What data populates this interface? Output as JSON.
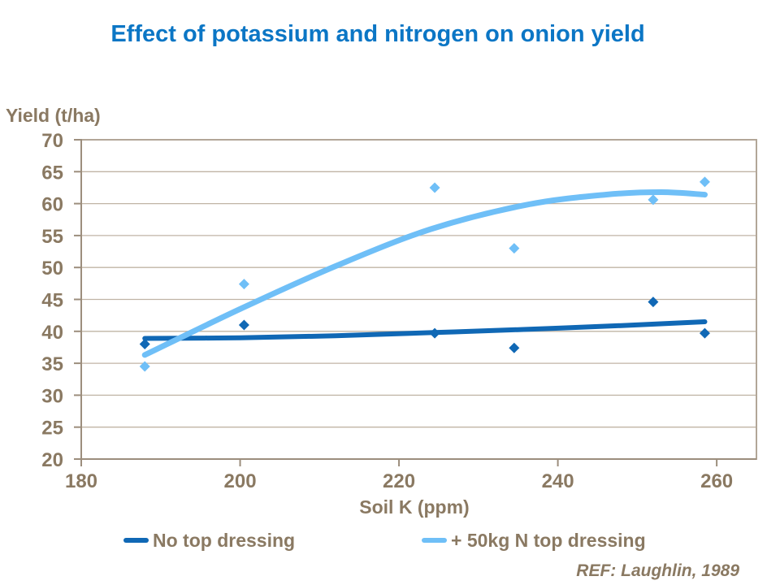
{
  "theme": {
    "title_color": "#0B76C5",
    "text_color": "#8A7962",
    "axis_color": "#9C8E7D",
    "grid_color": "#C0B4A5",
    "border_color": "#B2A698",
    "background": "#FFFFFF"
  },
  "chart_data": {
    "type": "scatter",
    "title": "Effect of potassium and nitrogen on onion yield",
    "xlabel": "Soil K (ppm)",
    "ylabel": "Yield (t/ha)",
    "ref": "REF: Laughlin, 1989",
    "xlim": [
      180,
      265
    ],
    "ylim": [
      20,
      70
    ],
    "x_ticks": [
      180,
      200,
      220,
      240,
      260
    ],
    "y_ticks": [
      20,
      25,
      30,
      35,
      40,
      45,
      50,
      55,
      60,
      65,
      70
    ],
    "grid": "horizontal-only",
    "legend_position": "bottom",
    "series": [
      {
        "name": "No top dressing",
        "color": "#1068B5",
        "marker": "diamond",
        "points": [
          [
            188,
            38.0
          ],
          [
            200.5,
            41.0
          ],
          [
            224.5,
            39.7
          ],
          [
            234.5,
            37.4
          ],
          [
            252,
            44.6
          ],
          [
            258.5,
            39.7
          ]
        ],
        "trend": [
          [
            188,
            38.9
          ],
          [
            200,
            39.0
          ],
          [
            212,
            39.3
          ],
          [
            224,
            39.8
          ],
          [
            236,
            40.3
          ],
          [
            248,
            40.9
          ],
          [
            258.5,
            41.5
          ]
        ],
        "trend_width": 6
      },
      {
        "name": "+ 50kg N top dressing",
        "color": "#6FBFF7",
        "marker": "diamond",
        "points": [
          [
            188,
            34.5
          ],
          [
            200.5,
            47.4
          ],
          [
            224.5,
            62.5
          ],
          [
            234.5,
            53.0
          ],
          [
            252,
            60.6
          ],
          [
            258.5,
            63.4
          ]
        ],
        "trend": [
          [
            188,
            36.3
          ],
          [
            200,
            43.5
          ],
          [
            212,
            50.2
          ],
          [
            224,
            56.0
          ],
          [
            236,
            59.8
          ],
          [
            246,
            61.4
          ],
          [
            253,
            61.8
          ],
          [
            258.5,
            61.4
          ]
        ],
        "trend_width": 7
      }
    ]
  }
}
